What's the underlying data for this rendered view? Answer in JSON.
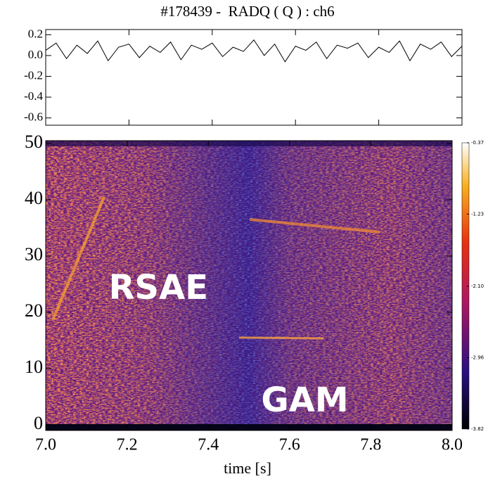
{
  "chart_data": [
    {
      "type": "line",
      "title": "#178439 -  RADQ ( Q ) : ch6",
      "x": [
        7.0,
        7.025,
        7.05,
        7.075,
        7.1,
        7.125,
        7.15,
        7.175,
        7.2,
        7.225,
        7.25,
        7.275,
        7.3,
        7.325,
        7.35,
        7.375,
        7.4,
        7.425,
        7.45,
        7.475,
        7.5,
        7.525,
        7.55,
        7.575,
        7.6,
        7.625,
        7.65,
        7.675,
        7.7,
        7.725,
        7.75,
        7.775,
        7.8,
        7.825,
        7.85,
        7.875,
        7.9,
        7.925,
        7.95,
        7.975,
        8.0
      ],
      "series": [
        {
          "color": "#000000",
          "values": [
            0.05,
            0.12,
            -0.03,
            0.1,
            0.02,
            0.14,
            -0.05,
            0.08,
            0.11,
            -0.02,
            0.09,
            0.03,
            0.13,
            -0.04,
            0.1,
            0.06,
            0.12,
            -0.01,
            0.08,
            0.04,
            0.15,
            0.0,
            0.11,
            -0.06,
            0.09,
            0.05,
            0.13,
            -0.03,
            0.1,
            0.07,
            0.12,
            -0.02,
            0.08,
            0.03,
            0.14,
            -0.05,
            0.11,
            0.06,
            0.13,
            -0.01,
            0.09
          ]
        }
      ],
      "xlim": [
        7.0,
        8.0
      ],
      "xticks": [
        {
          "value": 7.0,
          "label": "7.0"
        },
        7.2,
        7.4,
        7.6,
        7.8,
        {
          "value": 8.0,
          "label": "8.0"
        }
      ],
      "ylim": [
        -0.67,
        0.25
      ],
      "yticks": [
        0.2,
        {
          "value": 0,
          "label": "0.0"
        },
        -0.2,
        -0.4,
        -0.6
      ]
    },
    {
      "type": "heatmap",
      "xlabel": "time [s]",
      "xlim": [
        7.0,
        8.0
      ],
      "xticks": [
        {
          "value": 7.0,
          "label": "7.0"
        },
        7.2,
        7.4,
        7.6,
        7.8,
        {
          "value": 8.0,
          "label": "8.0"
        }
      ],
      "ylim": [
        -1,
        50.5
      ],
      "yticks": [
        0,
        10,
        20,
        30,
        40,
        50
      ],
      "clim": [
        -3.82,
        -0.37
      ],
      "cticks": [
        -0.37,
        -1.23,
        {
          "value": -2.1,
          "label": "-2.10"
        },
        -2.96,
        -3.82
      ],
      "annotations": [
        {
          "text": "RSAE",
          "x": 7.155,
          "y": 24
        },
        {
          "text": "GAM",
          "x": 7.53,
          "y": 4
        }
      ]
    }
  ]
}
